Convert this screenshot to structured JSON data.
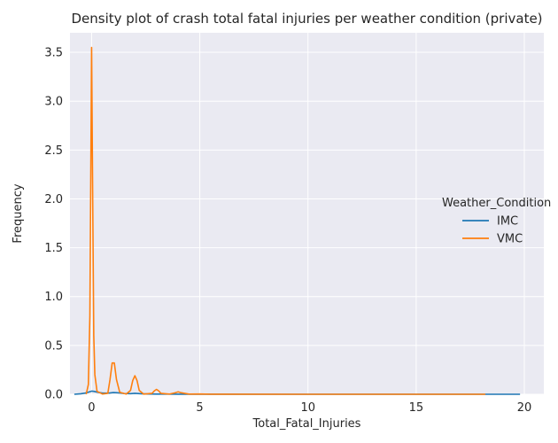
{
  "chart_data": {
    "type": "line",
    "title": "Density plot of crash total fatal injuries per weather condition (private)",
    "xlabel": "Total_Fatal_Injuries",
    "ylabel": "Frequency",
    "xlim": [
      -1.0,
      20.9
    ],
    "ylim": [
      0,
      3.7
    ],
    "xticks": [
      0,
      5,
      10,
      15,
      20
    ],
    "xtick_labels": [
      "0",
      "5",
      "10",
      "15",
      "20"
    ],
    "yticks": [
      0.0,
      0.5,
      1.0,
      1.5,
      2.0,
      2.5,
      3.0,
      3.5
    ],
    "ytick_labels": [
      "0.0",
      "0.5",
      "1.0",
      "1.5",
      "2.0",
      "2.5",
      "3.0",
      "3.5"
    ],
    "grid": true,
    "background": "#eaeaf2",
    "legend": {
      "title": "Weather_Condition",
      "placement": "center-right outside"
    },
    "series": [
      {
        "name": "IMC",
        "color": "#1f77b4",
        "x": [
          -0.8,
          -0.5,
          -0.3,
          -0.1,
          0.0,
          0.1,
          0.3,
          0.5,
          0.8,
          1.0,
          1.2,
          1.5,
          1.8,
          2.0,
          2.3,
          2.6,
          3.0,
          3.5,
          4.0,
          5.0,
          6.0,
          8.0,
          10.0,
          12.0,
          15.0,
          18.0,
          19.8
        ],
        "values": [
          0.0,
          0.005,
          0.012,
          0.025,
          0.032,
          0.03,
          0.02,
          0.012,
          0.012,
          0.018,
          0.015,
          0.008,
          0.006,
          0.01,
          0.005,
          0.003,
          0.002,
          0.002,
          0.001,
          0.001,
          0.001,
          0.0,
          0.0,
          0.0,
          0.0,
          0.0,
          0.0
        ]
      },
      {
        "name": "VMC",
        "color": "#ff7f0e",
        "x": [
          -0.25,
          -0.15,
          -0.08,
          0.0,
          0.05,
          0.1,
          0.15,
          0.25,
          0.5,
          0.75,
          0.85,
          0.95,
          1.05,
          1.15,
          1.3,
          1.6,
          1.8,
          1.9,
          2.0,
          2.1,
          2.2,
          2.4,
          2.8,
          2.9,
          3.0,
          3.1,
          3.2,
          3.6,
          3.85,
          4.0,
          4.15,
          4.5,
          5.0,
          5.5,
          6.0,
          10.0,
          18.2
        ],
        "values": [
          0.0,
          0.1,
          0.8,
          3.55,
          2.0,
          0.6,
          0.2,
          0.03,
          0.003,
          0.01,
          0.15,
          0.32,
          0.32,
          0.15,
          0.02,
          0.002,
          0.04,
          0.14,
          0.19,
          0.14,
          0.04,
          0.002,
          0.01,
          0.035,
          0.05,
          0.035,
          0.01,
          0.002,
          0.015,
          0.025,
          0.015,
          0.002,
          0.003,
          0.001,
          0.001,
          0.0,
          0.0
        ]
      }
    ]
  }
}
